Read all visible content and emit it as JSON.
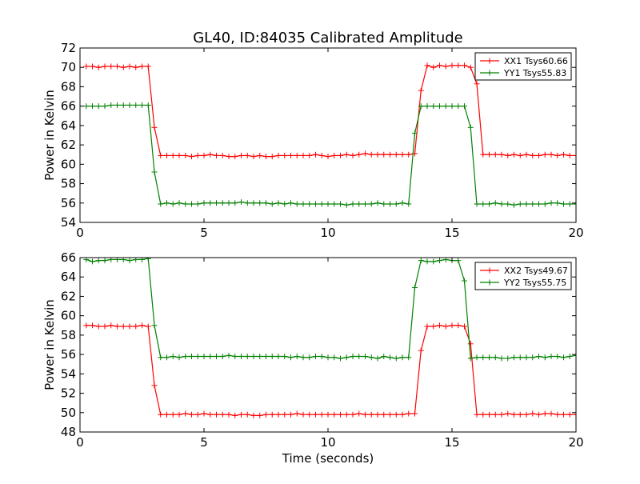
{
  "figure": {
    "title": "GL40, ID:84035 Calibrated Amplitude",
    "xlabel": "Time (seconds)"
  },
  "chart_data": [
    {
      "type": "line",
      "ylabel": "Power in Kelvin",
      "xlim": [
        0,
        20
      ],
      "ylim": [
        54,
        72
      ],
      "xticks": [
        0,
        5,
        10,
        15,
        20
      ],
      "yticks": [
        54,
        56,
        58,
        60,
        62,
        64,
        66,
        68,
        70,
        72
      ],
      "grid": false,
      "legend_position": "top-right",
      "series": [
        {
          "name": "XX1 Tsys60.66",
          "color": "#ff0000",
          "x": [
            0.25,
            0.5,
            0.75,
            1.0,
            1.25,
            1.5,
            1.75,
            2.0,
            2.25,
            2.5,
            2.75,
            3.0,
            3.25,
            3.5,
            3.75,
            4.0,
            4.25,
            4.5,
            4.75,
            5.0,
            5.25,
            5.5,
            5.75,
            6.0,
            6.25,
            6.5,
            6.75,
            7.0,
            7.25,
            7.5,
            7.75,
            8.0,
            8.25,
            8.5,
            8.75,
            9.0,
            9.25,
            9.5,
            9.75,
            10.0,
            10.25,
            10.5,
            10.75,
            11.0,
            11.25,
            11.5,
            11.75,
            12.0,
            12.25,
            12.5,
            12.75,
            13.0,
            13.25,
            13.5,
            13.75,
            14.0,
            14.25,
            14.5,
            14.75,
            15.0,
            15.25,
            15.5,
            15.75,
            16.0,
            16.25,
            16.5,
            16.75,
            17.0,
            17.25,
            17.5,
            17.75,
            18.0,
            18.25,
            18.5,
            18.75,
            19.0,
            19.25,
            19.5,
            19.75,
            20.0
          ],
          "y": [
            70.1,
            70.1,
            70.0,
            70.1,
            70.1,
            70.1,
            70.0,
            70.1,
            70.0,
            70.1,
            70.1,
            63.8,
            60.9,
            60.9,
            60.9,
            60.9,
            60.9,
            60.8,
            60.9,
            60.9,
            61.0,
            60.9,
            60.9,
            60.8,
            60.8,
            60.9,
            60.9,
            60.8,
            60.9,
            60.8,
            60.8,
            60.9,
            60.9,
            60.9,
            60.9,
            60.9,
            60.9,
            61.0,
            60.9,
            60.8,
            60.9,
            60.9,
            61.0,
            60.9,
            61.0,
            61.1,
            61.0,
            61.0,
            61.0,
            61.0,
            61.0,
            61.0,
            61.0,
            61.1,
            67.6,
            70.2,
            70.0,
            70.2,
            70.1,
            70.2,
            70.2,
            70.2,
            70.0,
            68.3,
            61.0,
            61.0,
            61.0,
            61.0,
            60.9,
            61.0,
            60.9,
            61.0,
            60.9,
            60.9,
            61.0,
            61.0,
            60.9,
            61.0,
            60.9,
            60.9
          ]
        },
        {
          "name": "YY1 Tsys55.83",
          "color": "#008000",
          "x": [
            0.25,
            0.5,
            0.75,
            1.0,
            1.25,
            1.5,
            1.75,
            2.0,
            2.25,
            2.5,
            2.75,
            3.0,
            3.25,
            3.5,
            3.75,
            4.0,
            4.25,
            4.5,
            4.75,
            5.0,
            5.25,
            5.5,
            5.75,
            6.0,
            6.25,
            6.5,
            6.75,
            7.0,
            7.25,
            7.5,
            7.75,
            8.0,
            8.25,
            8.5,
            8.75,
            9.0,
            9.25,
            9.5,
            9.75,
            10.0,
            10.25,
            10.5,
            10.75,
            11.0,
            11.25,
            11.5,
            11.75,
            12.0,
            12.25,
            12.5,
            12.75,
            13.0,
            13.25,
            13.5,
            13.75,
            14.0,
            14.25,
            14.5,
            14.75,
            15.0,
            15.25,
            15.5,
            15.75,
            16.0,
            16.25,
            16.5,
            16.75,
            17.0,
            17.25,
            17.5,
            17.75,
            18.0,
            18.25,
            18.5,
            18.75,
            19.0,
            19.25,
            19.5,
            19.75,
            20.0
          ],
          "y": [
            66.0,
            66.0,
            66.0,
            66.0,
            66.1,
            66.1,
            66.1,
            66.1,
            66.1,
            66.1,
            66.1,
            59.2,
            55.9,
            56.0,
            55.9,
            56.0,
            55.9,
            55.9,
            55.9,
            56.0,
            56.0,
            56.0,
            56.0,
            56.0,
            56.0,
            56.1,
            56.0,
            56.0,
            56.0,
            56.0,
            55.9,
            56.0,
            55.9,
            56.0,
            55.9,
            55.9,
            55.9,
            55.9,
            55.9,
            55.9,
            55.9,
            55.9,
            55.8,
            55.9,
            55.9,
            55.9,
            55.9,
            56.0,
            55.9,
            55.9,
            55.9,
            56.0,
            55.9,
            63.2,
            66.0,
            66.0,
            66.0,
            66.0,
            66.0,
            66.0,
            66.0,
            66.0,
            63.8,
            55.9,
            55.9,
            55.9,
            56.0,
            55.9,
            55.9,
            55.8,
            55.9,
            55.9,
            55.9,
            55.9,
            55.9,
            56.0,
            56.0,
            55.9,
            55.9,
            55.9
          ]
        }
      ]
    },
    {
      "type": "line",
      "ylabel": "Power in Kelvin",
      "xlim": [
        0,
        20
      ],
      "ylim": [
        48,
        66
      ],
      "xticks": [
        0,
        5,
        10,
        15,
        20
      ],
      "yticks": [
        48,
        50,
        52,
        54,
        56,
        58,
        60,
        62,
        64,
        66
      ],
      "grid": false,
      "legend_position": "top-right",
      "series": [
        {
          "name": "XX2 Tsys49.67",
          "color": "#ff0000",
          "x": [
            0.25,
            0.5,
            0.75,
            1.0,
            1.25,
            1.5,
            1.75,
            2.0,
            2.25,
            2.5,
            2.75,
            3.0,
            3.25,
            3.5,
            3.75,
            4.0,
            4.25,
            4.5,
            4.75,
            5.0,
            5.25,
            5.5,
            5.75,
            6.0,
            6.25,
            6.5,
            6.75,
            7.0,
            7.25,
            7.5,
            7.75,
            8.0,
            8.25,
            8.5,
            8.75,
            9.0,
            9.25,
            9.5,
            9.75,
            10.0,
            10.25,
            10.5,
            10.75,
            11.0,
            11.25,
            11.5,
            11.75,
            12.0,
            12.25,
            12.5,
            12.75,
            13.0,
            13.25,
            13.5,
            13.75,
            14.0,
            14.25,
            14.5,
            14.75,
            15.0,
            15.25,
            15.5,
            15.75,
            16.0,
            16.25,
            16.5,
            16.75,
            17.0,
            17.25,
            17.5,
            17.75,
            18.0,
            18.25,
            18.5,
            18.75,
            19.0,
            19.25,
            19.5,
            19.75,
            20.0
          ],
          "y": [
            59.0,
            59.0,
            58.9,
            58.9,
            59.0,
            58.9,
            58.9,
            58.9,
            58.9,
            59.0,
            58.9,
            52.8,
            49.8,
            49.8,
            49.8,
            49.8,
            49.9,
            49.8,
            49.8,
            49.9,
            49.8,
            49.8,
            49.8,
            49.8,
            49.7,
            49.8,
            49.8,
            49.7,
            49.7,
            49.8,
            49.8,
            49.8,
            49.8,
            49.8,
            49.9,
            49.8,
            49.8,
            49.8,
            49.8,
            49.8,
            49.8,
            49.8,
            49.8,
            49.8,
            49.9,
            49.8,
            49.8,
            49.8,
            49.8,
            49.8,
            49.8,
            49.8,
            49.9,
            49.9,
            56.4,
            58.9,
            58.9,
            59.0,
            58.9,
            59.0,
            59.0,
            58.9,
            57.1,
            49.8,
            49.8,
            49.8,
            49.8,
            49.8,
            49.9,
            49.8,
            49.8,
            49.8,
            49.9,
            49.8,
            49.9,
            49.9,
            49.8,
            49.8,
            49.8,
            49.8
          ]
        },
        {
          "name": "YY2 Tsys55.75",
          "color": "#008000",
          "x": [
            0.25,
            0.5,
            0.75,
            1.0,
            1.25,
            1.5,
            1.75,
            2.0,
            2.25,
            2.5,
            2.75,
            3.0,
            3.25,
            3.5,
            3.75,
            4.0,
            4.25,
            4.5,
            4.75,
            5.0,
            5.25,
            5.5,
            5.75,
            6.0,
            6.25,
            6.5,
            6.75,
            7.0,
            7.25,
            7.5,
            7.75,
            8.0,
            8.25,
            8.5,
            8.75,
            9.0,
            9.25,
            9.5,
            9.75,
            10.0,
            10.25,
            10.5,
            10.75,
            11.0,
            11.25,
            11.5,
            11.75,
            12.0,
            12.25,
            12.5,
            12.75,
            13.0,
            13.25,
            13.5,
            13.75,
            14.0,
            14.25,
            14.5,
            14.75,
            15.0,
            15.25,
            15.5,
            15.75,
            16.0,
            16.25,
            16.5,
            16.75,
            17.0,
            17.25,
            17.5,
            17.75,
            18.0,
            18.25,
            18.5,
            18.75,
            19.0,
            19.25,
            19.5,
            19.75,
            20.0
          ],
          "y": [
            65.8,
            65.6,
            65.7,
            65.7,
            65.8,
            65.8,
            65.8,
            65.7,
            65.8,
            65.8,
            65.9,
            59.0,
            55.7,
            55.7,
            55.8,
            55.7,
            55.8,
            55.8,
            55.8,
            55.8,
            55.8,
            55.8,
            55.8,
            55.9,
            55.8,
            55.8,
            55.8,
            55.8,
            55.8,
            55.8,
            55.8,
            55.8,
            55.8,
            55.7,
            55.8,
            55.7,
            55.7,
            55.8,
            55.8,
            55.7,
            55.7,
            55.6,
            55.7,
            55.8,
            55.8,
            55.8,
            55.7,
            55.6,
            55.8,
            55.7,
            55.6,
            55.7,
            55.7,
            62.9,
            65.7,
            65.6,
            65.6,
            65.7,
            65.8,
            65.7,
            65.7,
            63.6,
            55.6,
            55.7,
            55.7,
            55.7,
            55.7,
            55.6,
            55.6,
            55.7,
            55.7,
            55.7,
            55.7,
            55.8,
            55.7,
            55.8,
            55.8,
            55.7,
            55.8,
            55.9
          ]
        }
      ]
    }
  ]
}
